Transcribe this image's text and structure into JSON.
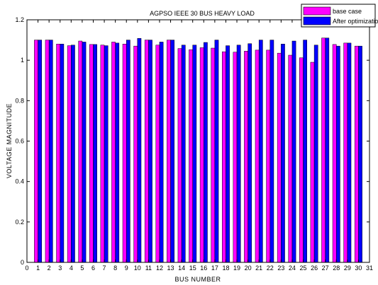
{
  "chart_data": {
    "type": "bar",
    "title": "AGPSO IEEE 30 BUS HEAVY LOAD",
    "xlabel": "BUS NUMBER",
    "ylabel": "VOLTAGE MAGNITUDE",
    "xlim": [
      0,
      31
    ],
    "ylim": [
      0,
      1.2
    ],
    "x_ticks": [
      0,
      1,
      2,
      3,
      4,
      5,
      6,
      7,
      8,
      9,
      10,
      11,
      12,
      13,
      14,
      15,
      16,
      17,
      18,
      19,
      20,
      21,
      22,
      23,
      24,
      25,
      26,
      27,
      28,
      29,
      30,
      31
    ],
    "y_ticks": [
      0,
      0.2,
      0.4,
      0.6,
      0.8,
      1,
      1.2
    ],
    "categories": [
      1,
      2,
      3,
      4,
      5,
      6,
      7,
      8,
      9,
      10,
      11,
      12,
      13,
      14,
      15,
      16,
      17,
      18,
      19,
      20,
      21,
      22,
      23,
      24,
      25,
      26,
      27,
      28,
      29,
      30
    ],
    "legend_position": "top-right",
    "grid": false,
    "series": [
      {
        "name": "base case",
        "color": "#ff00ff",
        "values": [
          1.1,
          1.1,
          1.08,
          1.072,
          1.095,
          1.078,
          1.075,
          1.09,
          1.08,
          1.07,
          1.1,
          1.075,
          1.1,
          1.058,
          1.052,
          1.062,
          1.06,
          1.042,
          1.04,
          1.045,
          1.05,
          1.05,
          1.035,
          1.025,
          1.012,
          0.99,
          1.11,
          1.078,
          1.085,
          1.07
        ]
      },
      {
        "name": "After optimization",
        "color": "#0000ff",
        "values": [
          1.1,
          1.1,
          1.08,
          1.075,
          1.09,
          1.078,
          1.072,
          1.085,
          1.1,
          1.108,
          1.1,
          1.09,
          1.1,
          1.075,
          1.075,
          1.088,
          1.1,
          1.072,
          1.075,
          1.082,
          1.1,
          1.1,
          1.08,
          1.095,
          1.1,
          1.075,
          1.11,
          1.07,
          1.085,
          1.07
        ]
      }
    ]
  }
}
